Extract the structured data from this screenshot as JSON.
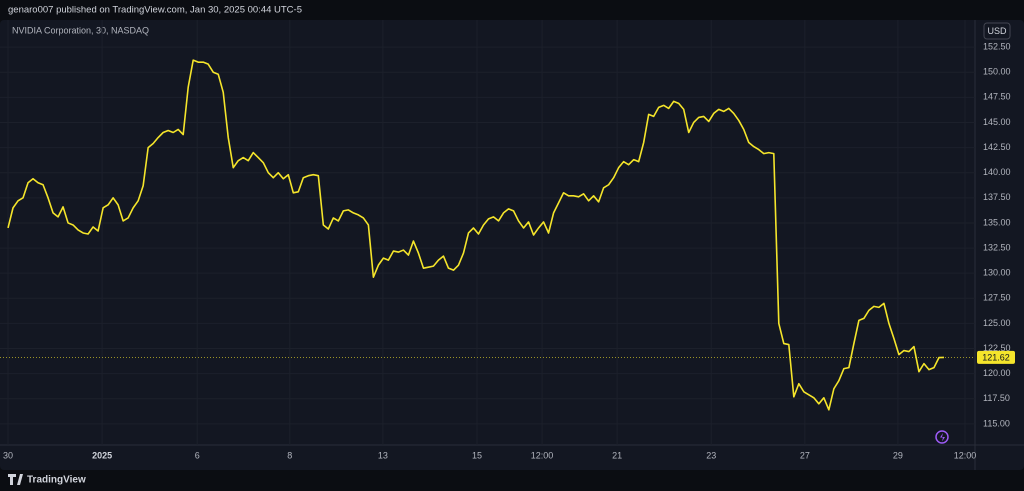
{
  "header": {
    "published": "genaro007 published on TradingView.com, Jan 30, 2025 00:44 UTC-5"
  },
  "footer": {
    "brand": "TradingView"
  },
  "chart_data": {
    "type": "line",
    "title": "NVIDIA Corporation, 30, NASDAQ",
    "currency": "USD",
    "color": "#f5e52b",
    "grid": true,
    "last_price": 121.62,
    "values": [
      134.5,
      136.5,
      137.2,
      137.5,
      139,
      139.4,
      139,
      138.8,
      137.5,
      136,
      135.6,
      136.6,
      135,
      134.8,
      134.3,
      134,
      133.9,
      134.6,
      134.2,
      136.5,
      136.8,
      137.5,
      136.8,
      135.2,
      135.5,
      136.5,
      137.2,
      138.7,
      142.5,
      142.9,
      143.5,
      144,
      144.2,
      144,
      144.3,
      143.8,
      148.5,
      151.2,
      151,
      151,
      150.8,
      150,
      149.8,
      148,
      143.5,
      140.5,
      141.2,
      141.5,
      141.2,
      142,
      141.5,
      141,
      140,
      139.5,
      140,
      139.4,
      139.8,
      138,
      138.1,
      139.5,
      139.7,
      139.8,
      139.7,
      134.8,
      134.4,
      135.5,
      135.2,
      136.2,
      136.3,
      136,
      135.8,
      135.5,
      134.8,
      129.6,
      130.8,
      131.5,
      131.3,
      132.2,
      132.1,
      132.3,
      131.8,
      133.2,
      132,
      130.5,
      130.6,
      130.7,
      131.3,
      131.7,
      130.5,
      130.3,
      130.8,
      132,
      134,
      134.5,
      133.9,
      134.8,
      135.4,
      135.6,
      135.2,
      136,
      136.4,
      136.2,
      135.2,
      134.5,
      135.1,
      133.8,
      134.5,
      135.1,
      134,
      136,
      137,
      138,
      137.7,
      137.7,
      137.6,
      137.9,
      137.2,
      137.7,
      137.1,
      138.5,
      138.8,
      139.5,
      140.5,
      141.1,
      140.8,
      141.3,
      141.1,
      143,
      145.8,
      145.6,
      146.5,
      146.7,
      146.4,
      147.1,
      146.9,
      146.3,
      144,
      145,
      145.5,
      145.6,
      145.1,
      145.9,
      146.3,
      146.1,
      146.4,
      145.9,
      145.2,
      144.3,
      143,
      142.6,
      142.3,
      141.9,
      142,
      141.9,
      125,
      123,
      122.9,
      117.7,
      119,
      118.2,
      117.9,
      117.6,
      117,
      117.6,
      116.4,
      118.5,
      119.3,
      120.5,
      120.6,
      123,
      125.3,
      125.5,
      126.3,
      126.7,
      126.6,
      127,
      125,
      123.5,
      121.9,
      122.3,
      122.2,
      122.7,
      120.2,
      121,
      120.4,
      120.6,
      121.6,
      121.62
    ],
    "xlim": [
      -1.6,
      193.2
    ],
    "xticks": [
      {
        "value": 0,
        "label": "30"
      },
      {
        "value": 18.8,
        "label": "2025"
      },
      {
        "value": 37.8,
        "label": "6"
      },
      {
        "value": 56.3,
        "label": "8"
      },
      {
        "value": 74.9,
        "label": "13"
      },
      {
        "value": 93.7,
        "label": "15"
      },
      {
        "value": 106.7,
        "label": "12:00"
      },
      {
        "value": 121.7,
        "label": "21"
      },
      {
        "value": 140.5,
        "label": "23"
      },
      {
        "value": 159.2,
        "label": "27"
      },
      {
        "value": 177.8,
        "label": "29"
      },
      {
        "value": 191.2,
        "label": "12:00"
      }
    ],
    "ylim": [
      113.4,
      154.2
    ],
    "yticks": [
      {
        "value": 115,
        "label": "115.00"
      },
      {
        "value": 117.5,
        "label": "117.50"
      },
      {
        "value": 120,
        "label": "120.00"
      },
      {
        "value": 122.5,
        "label": "122.50"
      },
      {
        "value": 125,
        "label": "125.00"
      },
      {
        "value": 127.5,
        "label": "127.50"
      },
      {
        "value": 130,
        "label": "130.00"
      },
      {
        "value": 132.5,
        "label": "132.50"
      },
      {
        "value": 135,
        "label": "135.00"
      },
      {
        "value": 137.5,
        "label": "137.50"
      },
      {
        "value": 140,
        "label": "140.00"
      },
      {
        "value": 142.5,
        "label": "142.50"
      },
      {
        "value": 145,
        "label": "145.00"
      },
      {
        "value": 147.5,
        "label": "147.50"
      },
      {
        "value": 150,
        "label": "150.00"
      },
      {
        "value": 152.5,
        "label": "152.50"
      }
    ]
  }
}
